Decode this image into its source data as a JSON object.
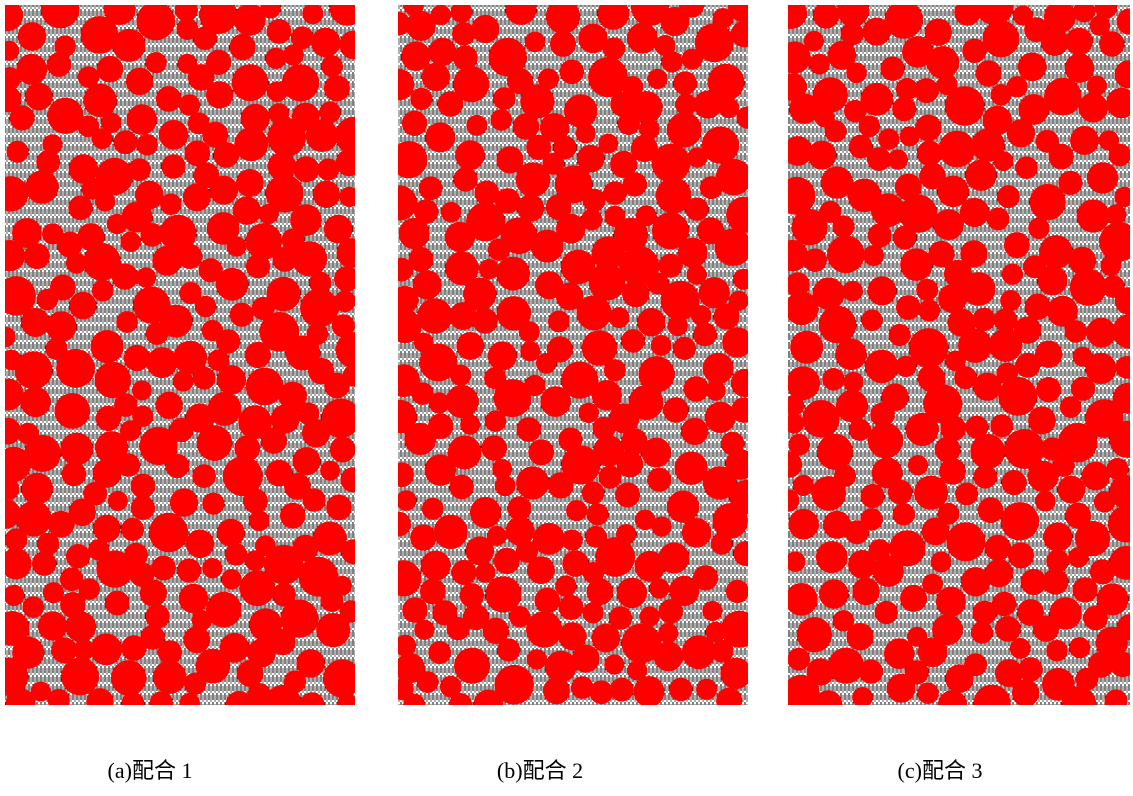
{
  "panels": [
    {
      "caption": "(a)配合 1"
    },
    {
      "caption": "(b)配合 2"
    },
    {
      "caption": "(c)配合 3"
    }
  ]
}
